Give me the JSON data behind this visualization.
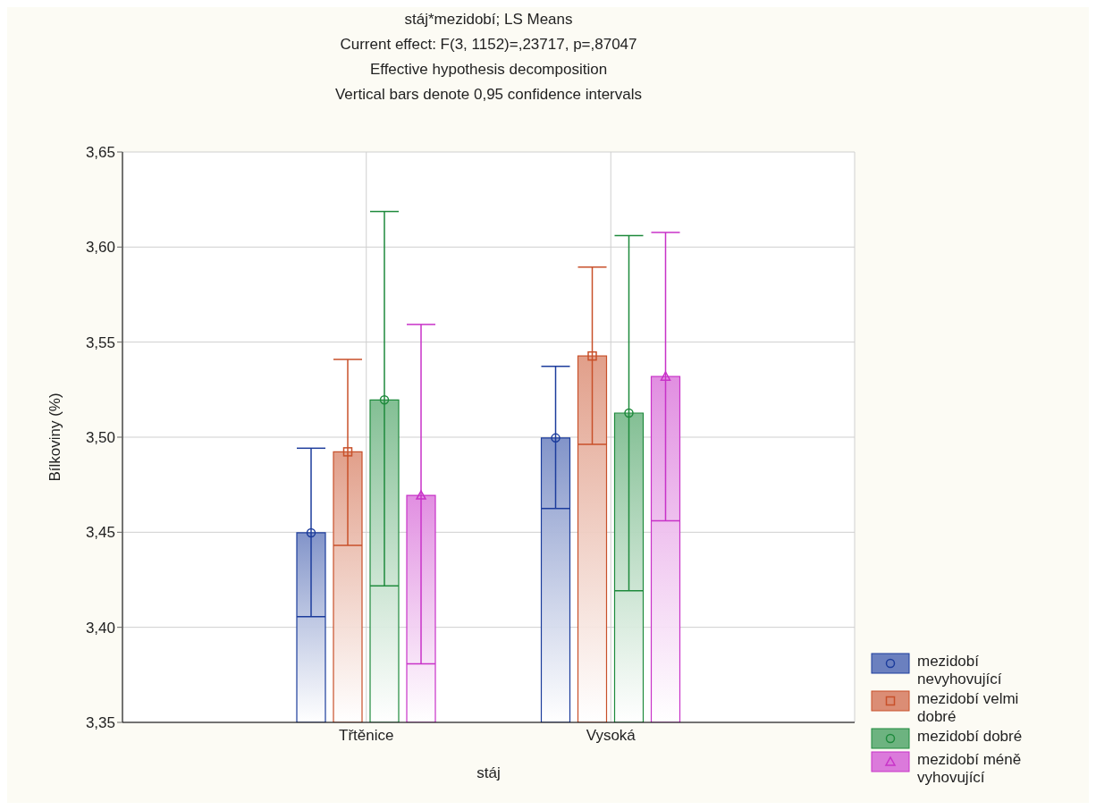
{
  "chart_data": {
    "type": "bar",
    "title": "stáj*mezidobí; LS Means",
    "subtitle": "Current effect: F(3, 1152)=,23717, p=,87047",
    "annotations": [
      "Effective hypothesis decomposition",
      "Vertical bars denote 0,95 confidence intervals"
    ],
    "xlabel": "stáj",
    "ylabel": "Bílkoviny (%)",
    "categories": [
      "Třtěnice",
      "Vysoká"
    ],
    "series": [
      {
        "name": "mezidobí nevyhovující",
        "color": "#1c3c9c",
        "marker": "circle",
        "values": [
          3.4497,
          3.4996
        ],
        "errors": [
          [
            3.4056,
            3.4942
          ],
          [
            3.4625,
            3.5373
          ]
        ]
      },
      {
        "name": "mezidobí velmi dobré",
        "color": "#c8502a",
        "marker": "square",
        "values": [
          3.4923,
          3.5427
        ],
        "errors": [
          [
            3.4431,
            3.5409
          ],
          [
            3.4962,
            3.5895
          ]
        ]
      },
      {
        "name": "mezidobí dobré",
        "color": "#1e8a3c",
        "marker": "circle",
        "values": [
          3.5196,
          3.5127
        ],
        "errors": [
          [
            3.4218,
            3.6187
          ],
          [
            3.4192,
            3.606
          ]
        ]
      },
      {
        "name": "mezidobí méně vyhovující",
        "color": "#c832c8",
        "marker": "triangle",
        "values": [
          3.4694,
          3.5319
        ],
        "errors": [
          [
            3.3808,
            3.5593
          ],
          [
            3.456,
            3.6077
          ]
        ]
      }
    ],
    "ylim": [
      3.35,
      3.65
    ],
    "yticks": [
      {
        "value": 3.35,
        "label": "3,35"
      },
      {
        "value": 3.4,
        "label": "3,40"
      },
      {
        "value": 3.45,
        "label": "3,45"
      },
      {
        "value": 3.5,
        "label": "3,50"
      },
      {
        "value": 3.55,
        "label": "3,55"
      },
      {
        "value": 3.6,
        "label": "3,60"
      },
      {
        "value": 3.65,
        "label": "3,65"
      }
    ],
    "grid": true,
    "legend": "bottom right"
  }
}
